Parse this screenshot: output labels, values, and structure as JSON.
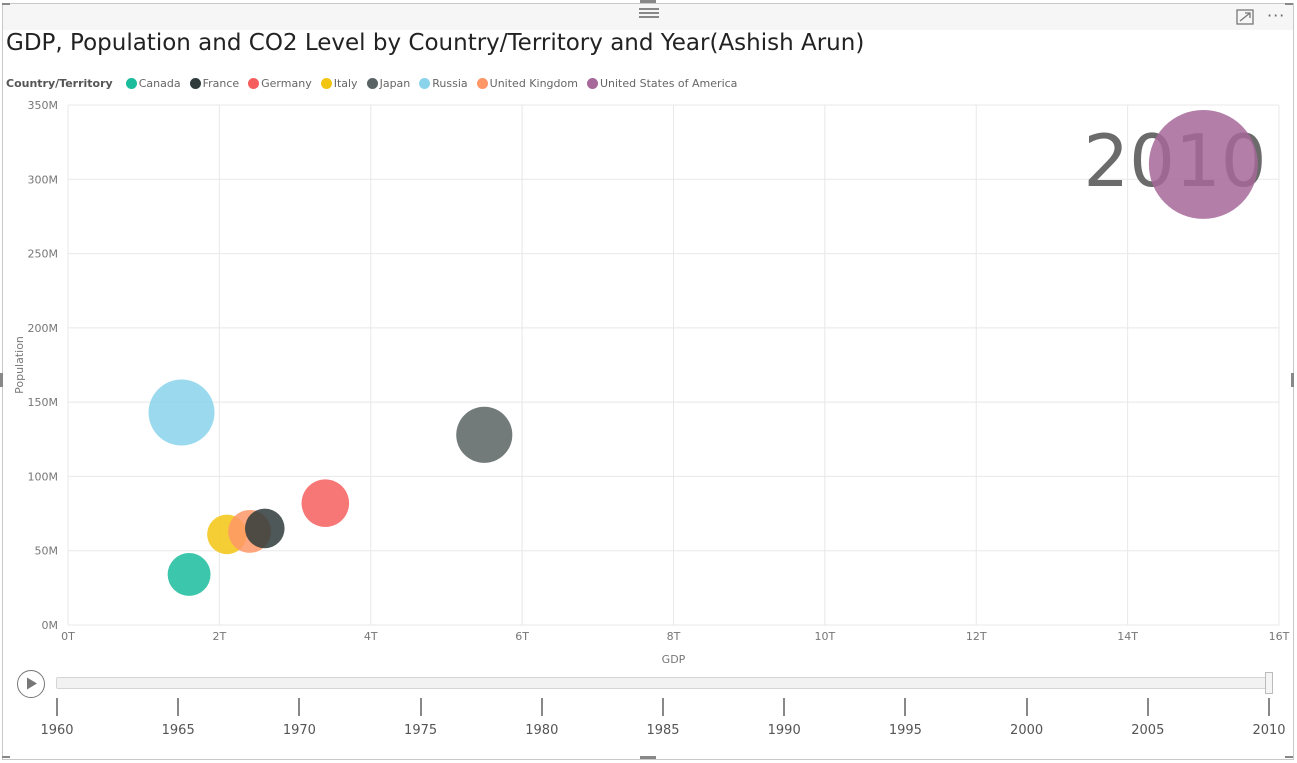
{
  "visual": {
    "title": "GDP, Population and CO2 Level by Country/Territory and Year(Ashish Arun)",
    "icons": {
      "grip": "drag-grip-icon",
      "focus": "focus-mode-icon",
      "more": "more-options-icon",
      "play": "play-icon"
    },
    "more_label": "···"
  },
  "legend": {
    "title": "Country/Territory",
    "items": [
      {
        "name": "Canada",
        "color": "#1ABC9C"
      },
      {
        "name": "France",
        "color": "#2F3B3B"
      },
      {
        "name": "Germany",
        "color": "#F65E5E"
      },
      {
        "name": "Italy",
        "color": "#F2C511"
      },
      {
        "name": "Japan",
        "color": "#5A6363"
      },
      {
        "name": "Russia",
        "color": "#8AD4EB"
      },
      {
        "name": "United Kingdom",
        "color": "#FE9666"
      },
      {
        "name": "United States of America",
        "color": "#A66999"
      }
    ]
  },
  "chart_data": {
    "type": "scatter",
    "title": "GDP, Population and CO2 Level by Country/Territory and Year(Ashish Arun)",
    "xlabel": "GDP",
    "ylabel": "Population",
    "xlim": [
      0,
      16
    ],
    "ylim": [
      0,
      350
    ],
    "x_ticks": [
      "0T",
      "2T",
      "4T",
      "6T",
      "8T",
      "10T",
      "12T",
      "14T",
      "16T"
    ],
    "y_ticks": [
      "0M",
      "50M",
      "100M",
      "150M",
      "200M",
      "250M",
      "300M",
      "350M"
    ],
    "grid": true,
    "legend_position": "top-left",
    "play_axis_value": "2010",
    "points": [
      {
        "name": "Russia",
        "x": 1.5,
        "y": 143,
        "size": 1.0,
        "color": "#8AD4EB"
      },
      {
        "name": "Canada",
        "x": 1.6,
        "y": 34,
        "size": 0.65,
        "color": "#1ABC9C"
      },
      {
        "name": "Italy",
        "x": 2.1,
        "y": 61,
        "size": 0.6,
        "color": "#F2C511"
      },
      {
        "name": "United Kingdom",
        "x": 2.4,
        "y": 63,
        "size": 0.65,
        "color": "#FE9666"
      },
      {
        "name": "France",
        "x": 2.6,
        "y": 65,
        "size": 0.6,
        "color": "#2F3B3B"
      },
      {
        "name": "Germany",
        "x": 3.4,
        "y": 82,
        "size": 0.72,
        "color": "#F65E5E"
      },
      {
        "name": "Japan",
        "x": 5.5,
        "y": 128,
        "size": 0.85,
        "color": "#5A6363"
      },
      {
        "name": "United States of America",
        "x": 15.0,
        "y": 310,
        "size": 1.65,
        "color": "#A66999"
      }
    ]
  },
  "play_axis": {
    "years": [
      "1960",
      "1965",
      "1970",
      "1975",
      "1980",
      "1985",
      "1990",
      "1995",
      "2000",
      "2005",
      "2010"
    ],
    "current": "2010",
    "progress": 1.0
  }
}
